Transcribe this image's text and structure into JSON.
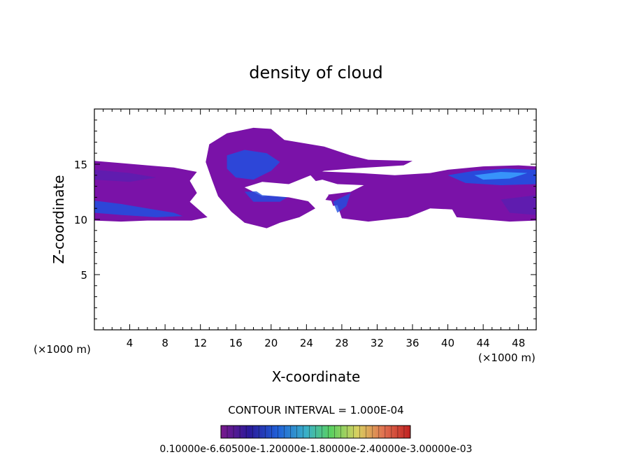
{
  "chart_data": {
    "type": "heatmap",
    "title": "density of cloud",
    "xlabel": "X-coordinate",
    "ylabel": "Z-coordinate",
    "x_unit_left": "(×1000 m)",
    "x_unit_right": "(×1000 m)",
    "xlim": [
      0,
      50
    ],
    "ylim": [
      0,
      20
    ],
    "x_ticks": [
      4,
      8,
      12,
      16,
      20,
      24,
      28,
      32,
      36,
      40,
      44,
      48
    ],
    "y_ticks": [
      5,
      10,
      15
    ],
    "contour_interval_label": "CONTOUR INTERVAL = 1.000E-04",
    "colorbar_labels": "0.10000e-6.60500e-1.20000e-1.80000e-2.40000e-3.00000e-03",
    "colors": {
      "low": "#7a12a8",
      "mid": "#5a1fb0",
      "high": "#2050e0",
      "peak": "#3aa0ff"
    },
    "regions": [
      {
        "name": "left-layer",
        "x": [
          0,
          12.8
        ],
        "z": [
          9.8,
          15.2
        ],
        "level": "low"
      },
      {
        "name": "left-core",
        "x": [
          0,
          9
        ],
        "z": [
          10.4,
          11.6
        ],
        "level": "high"
      },
      {
        "name": "central-tower",
        "x": [
          12.5,
          32
        ],
        "z": [
          9.5,
          18.3
        ],
        "level": "low"
      },
      {
        "name": "central-core",
        "x": [
          15,
          21
        ],
        "z": [
          13,
          16
        ],
        "level": "high"
      },
      {
        "name": "right-layer",
        "x": [
          26,
          50
        ],
        "z": [
          10,
          14.8
        ],
        "level": "low"
      },
      {
        "name": "right-core",
        "x": [
          40,
          50
        ],
        "z": [
          13.2,
          14.6
        ],
        "level": "peak"
      }
    ]
  }
}
